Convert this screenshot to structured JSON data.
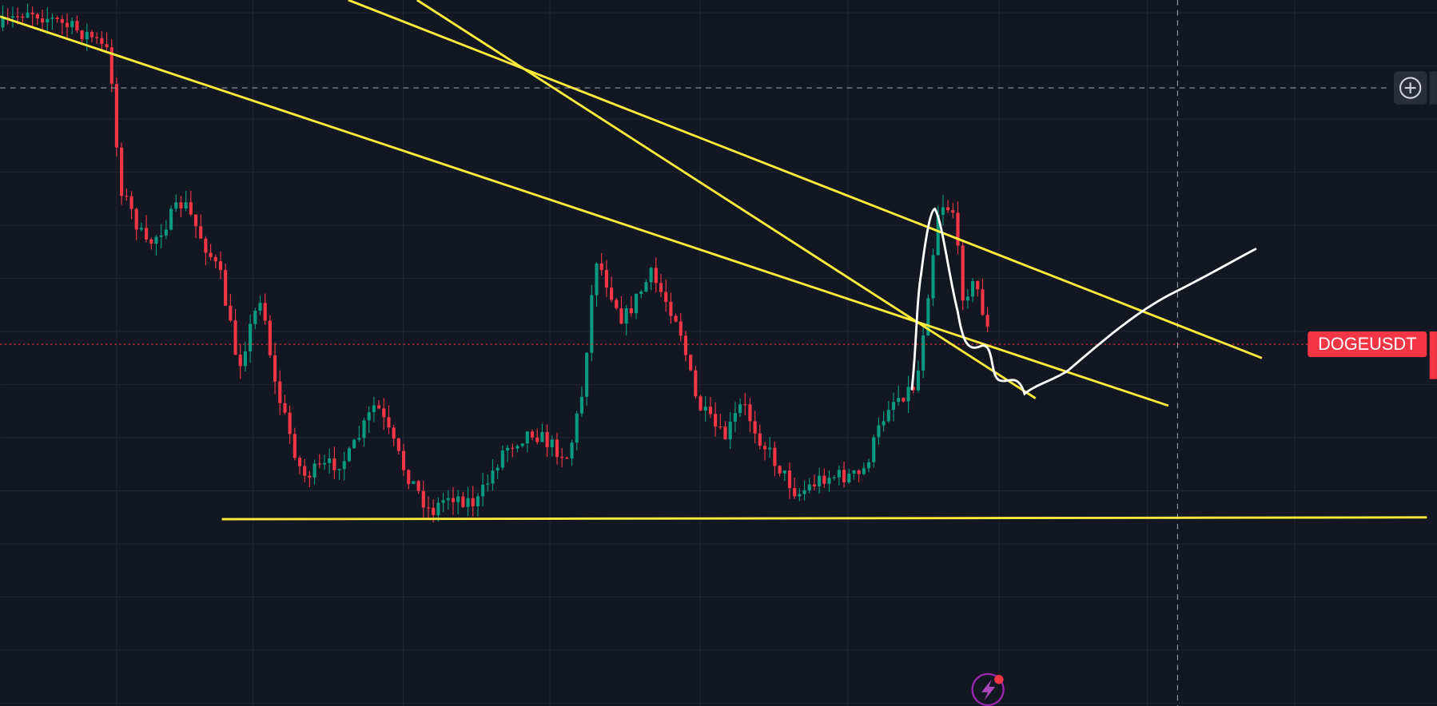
{
  "symbol_label": "DOGEUSDT"
}
